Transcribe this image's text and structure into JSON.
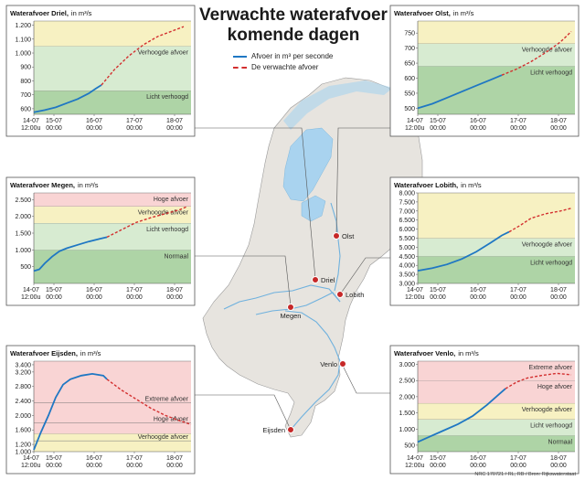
{
  "title_line1": "Verwachte waterafvoer",
  "title_line2": "komende dagen",
  "legend": {
    "observed": "Afvoer in m³ per seconde",
    "forecast": "De verwachte afvoer"
  },
  "credit": "NRC 170721 / RL, RB / Bron: Rijkswaterstaat",
  "colors": {
    "observed": "#1f77c3",
    "forecast": "#d32f2f",
    "green_zone": "#d7ebd1",
    "green_dark": "#aed4a6",
    "yellow_zone": "#f7f1c2",
    "red_zone": "#f9d4d4",
    "land": "#e7e4df",
    "water": "#a9d3ef",
    "lines": "#555555"
  },
  "cities": [
    "Olst",
    "Driel",
    "Lobith",
    "Megen",
    "Venlo",
    "Eijsden"
  ],
  "chart_data": [
    {
      "type": "line",
      "title": "Waterafvoer Driel,",
      "unit": "in m³/s",
      "x_ticks": [
        "14-07\n12:00u",
        "15-07\n00:00",
        "16-07\n00:00",
        "17-07\n00:00",
        "18-07\n00:00"
      ],
      "y_ticks": [
        500,
        600,
        700,
        800,
        900,
        1000,
        1100,
        1200
      ],
      "ylim": [
        560,
        1230
      ],
      "zones": [
        {
          "from": 560,
          "to": 730,
          "label": "Licht verhoogd",
          "color": "green_dark"
        },
        {
          "from": 730,
          "to": 1050,
          "label": "Verhoogde afvoer",
          "color": "green_zone"
        },
        {
          "from": 1050,
          "to": 1230,
          "label": "",
          "color": "yellow_zone"
        }
      ],
      "series": [
        {
          "kind": "observed",
          "points": [
            [
              0,
              575
            ],
            [
              0.3,
              590
            ],
            [
              0.6,
              610
            ],
            [
              0.9,
              640
            ],
            [
              1.2,
              670
            ],
            [
              1.5,
              710
            ],
            [
              1.7,
              745
            ],
            [
              1.85,
              770
            ]
          ]
        },
        {
          "kind": "forecast",
          "points": [
            [
              1.85,
              770
            ],
            [
              2.2,
              880
            ],
            [
              2.6,
              980
            ],
            [
              3.0,
              1060
            ],
            [
              3.4,
              1120
            ],
            [
              3.8,
              1160
            ],
            [
              4.1,
              1190
            ]
          ]
        }
      ]
    },
    {
      "type": "line",
      "title": "Waterafvoer Olst,",
      "unit": "in m³/s",
      "x_ticks": [
        "14-07\n12:00u",
        "15-07\n00:00",
        "16-07\n00:00",
        "17-07\n00:00",
        "18-07\n00:00"
      ],
      "y_ticks": [
        450,
        500,
        550,
        600,
        650,
        700,
        750,
        800
      ],
      "ylim": [
        480,
        790
      ],
      "zones": [
        {
          "from": 480,
          "to": 640,
          "label": "Licht verhoogd",
          "color": "green_dark"
        },
        {
          "from": 640,
          "to": 715,
          "label": "Verhoogde afvoer",
          "color": "green_zone"
        },
        {
          "from": 715,
          "to": 790,
          "label": "",
          "color": "yellow_zone"
        }
      ],
      "series": [
        {
          "kind": "observed",
          "points": [
            [
              0,
              500
            ],
            [
              0.4,
              515
            ],
            [
              0.8,
              535
            ],
            [
              1.2,
              555
            ],
            [
              1.6,
              575
            ],
            [
              2.0,
              595
            ],
            [
              2.3,
              610
            ]
          ]
        },
        {
          "kind": "forecast",
          "points": [
            [
              2.3,
              610
            ],
            [
              2.7,
              630
            ],
            [
              3.1,
              655
            ],
            [
              3.5,
              685
            ],
            [
              3.9,
              720
            ],
            [
              4.2,
              755
            ]
          ]
        }
      ]
    },
    {
      "type": "line",
      "title": "Waterafvoer Megen,",
      "unit": "in m³/s",
      "x_ticks": [
        "14-07\n12:00u",
        "15-07\n00:00",
        "16-07\n00:00",
        "17-07\n00:00",
        "18-07\n00:00"
      ],
      "y_ticks": [
        500,
        1000,
        1500,
        2000,
        2500
      ],
      "ylim": [
        0,
        2700
      ],
      "zones": [
        {
          "from": 0,
          "to": 1000,
          "label": "Normaal",
          "color": "green_dark"
        },
        {
          "from": 1000,
          "to": 1800,
          "label": "Licht verhoogd",
          "color": "green_zone"
        },
        {
          "from": 1800,
          "to": 2300,
          "label": "Verhoogde afvoer",
          "color": "yellow_zone"
        },
        {
          "from": 2300,
          "to": 2700,
          "label": "Hoge afvoer",
          "color": "red_zone"
        }
      ],
      "series": [
        {
          "kind": "observed",
          "points": [
            [
              0,
              370
            ],
            [
              0.15,
              420
            ],
            [
              0.3,
              600
            ],
            [
              0.5,
              800
            ],
            [
              0.7,
              960
            ],
            [
              0.9,
              1050
            ],
            [
              1.2,
              1150
            ],
            [
              1.5,
              1250
            ],
            [
              1.8,
              1330
            ],
            [
              2.0,
              1380
            ]
          ]
        },
        {
          "kind": "forecast",
          "points": [
            [
              2.0,
              1380
            ],
            [
              2.4,
              1600
            ],
            [
              2.8,
              1820
            ],
            [
              3.2,
              1960
            ],
            [
              3.6,
              2080
            ],
            [
              4.0,
              2200
            ],
            [
              4.2,
              2300
            ]
          ]
        }
      ]
    },
    {
      "type": "line",
      "title": "Waterafvoer Lobith,",
      "unit": "in m³/s",
      "x_ticks": [
        "14-07\n12:00u",
        "15-07\n00:00",
        "16-07\n00:00",
        "17-07\n00:00",
        "18-07\n00:00"
      ],
      "y_ticks": [
        3000,
        3500,
        4000,
        4500,
        5000,
        5500,
        6000,
        6500,
        7000,
        7500,
        8000
      ],
      "ylim": [
        3000,
        8000
      ],
      "zones": [
        {
          "from": 3000,
          "to": 4500,
          "label": "Licht verhoogd",
          "color": "green_dark"
        },
        {
          "from": 4500,
          "to": 5500,
          "label": "Verhoogde afvoer",
          "color": "green_zone"
        },
        {
          "from": 5500,
          "to": 8000,
          "label": "",
          "color": "yellow_zone"
        }
      ],
      "series": [
        {
          "kind": "observed",
          "points": [
            [
              0,
              3700
            ],
            [
              0.4,
              3850
            ],
            [
              0.8,
              4050
            ],
            [
              1.2,
              4350
            ],
            [
              1.6,
              4750
            ],
            [
              2.0,
              5250
            ],
            [
              2.3,
              5650
            ],
            [
              2.5,
              5850
            ]
          ]
        },
        {
          "kind": "forecast",
          "points": [
            [
              2.5,
              5850
            ],
            [
              2.8,
              6200
            ],
            [
              3.1,
              6600
            ],
            [
              3.5,
              6850
            ],
            [
              3.9,
              7000
            ],
            [
              4.2,
              7150
            ]
          ]
        }
      ]
    },
    {
      "type": "line",
      "title": "Waterafvoer Eijsden,",
      "unit": "in m³/s",
      "x_ticks": [
        "14-07\n12:00u",
        "15-07\n00:00",
        "16-07\n00:00",
        "17-07\n00:00",
        "18-07\n00:00"
      ],
      "y_ticks": [
        1000,
        1200,
        1600,
        2000,
        2400,
        2800,
        3200,
        3400
      ],
      "ylim": [
        1000,
        3500
      ],
      "zones": [
        {
          "from": 1000,
          "to": 1500,
          "label": "Verhoogde afvoer",
          "color": "yellow_zone"
        },
        {
          "from": 1500,
          "to": 3500,
          "label": "",
          "color": "red_zone"
        }
      ],
      "zone_labels": [
        {
          "value": 2450,
          "label": "Extreme afvoer"
        },
        {
          "value": 1900,
          "label": "Hoge afvoer"
        },
        {
          "value": 1400,
          "label": "Verhoogde afvoer"
        }
      ],
      "series": [
        {
          "kind": "observed",
          "points": [
            [
              0,
              1050
            ],
            [
              0.1,
              1300
            ],
            [
              0.2,
              1550
            ],
            [
              0.4,
              2000
            ],
            [
              0.6,
              2500
            ],
            [
              0.8,
              2850
            ],
            [
              1.0,
              3000
            ],
            [
              1.3,
              3100
            ],
            [
              1.6,
              3150
            ],
            [
              1.9,
              3100
            ],
            [
              2.0,
              3000
            ]
          ]
        },
        {
          "kind": "forecast",
          "points": [
            [
              2.0,
              3000
            ],
            [
              2.4,
              2700
            ],
            [
              2.8,
              2450
            ],
            [
              3.2,
              2200
            ],
            [
              3.6,
              2000
            ],
            [
              4.0,
              1850
            ],
            [
              4.3,
              1750
            ]
          ]
        }
      ]
    },
    {
      "type": "line",
      "title": "Waterafvoer Venlo,",
      "unit": "in m³/s",
      "x_ticks": [
        "14-07\n12:00u",
        "15-07\n00:00",
        "16-07\n00:00",
        "17-07\n00:00",
        "18-07\n00:00"
      ],
      "y_ticks": [
        500,
        1000,
        1500,
        2000,
        2500,
        3000
      ],
      "ylim": [
        300,
        3100
      ],
      "zones": [
        {
          "from": 300,
          "to": 800,
          "label": "Normaal",
          "color": "green_dark"
        },
        {
          "from": 800,
          "to": 1300,
          "label": "Licht verhoogd",
          "color": "green_zone"
        },
        {
          "from": 1300,
          "to": 1800,
          "label": "Verhoogde afvoer",
          "color": "yellow_zone"
        },
        {
          "from": 1800,
          "to": 2500,
          "label": "Hoge afvoer",
          "color": "red_zone"
        },
        {
          "from": 2500,
          "to": 3100,
          "label": "Extreme afvoer",
          "color": "red_zone"
        }
      ],
      "series": [
        {
          "kind": "observed",
          "points": [
            [
              0,
              600
            ],
            [
              0.3,
              750
            ],
            [
              0.7,
              950
            ],
            [
              1.1,
              1150
            ],
            [
              1.5,
              1400
            ],
            [
              1.9,
              1750
            ],
            [
              2.2,
              2050
            ],
            [
              2.4,
              2250
            ]
          ]
        },
        {
          "kind": "forecast",
          "points": [
            [
              2.4,
              2250
            ],
            [
              2.7,
              2450
            ],
            [
              3.0,
              2580
            ],
            [
              3.4,
              2660
            ],
            [
              3.8,
              2720
            ],
            [
              4.2,
              2680
            ]
          ]
        }
      ]
    }
  ]
}
